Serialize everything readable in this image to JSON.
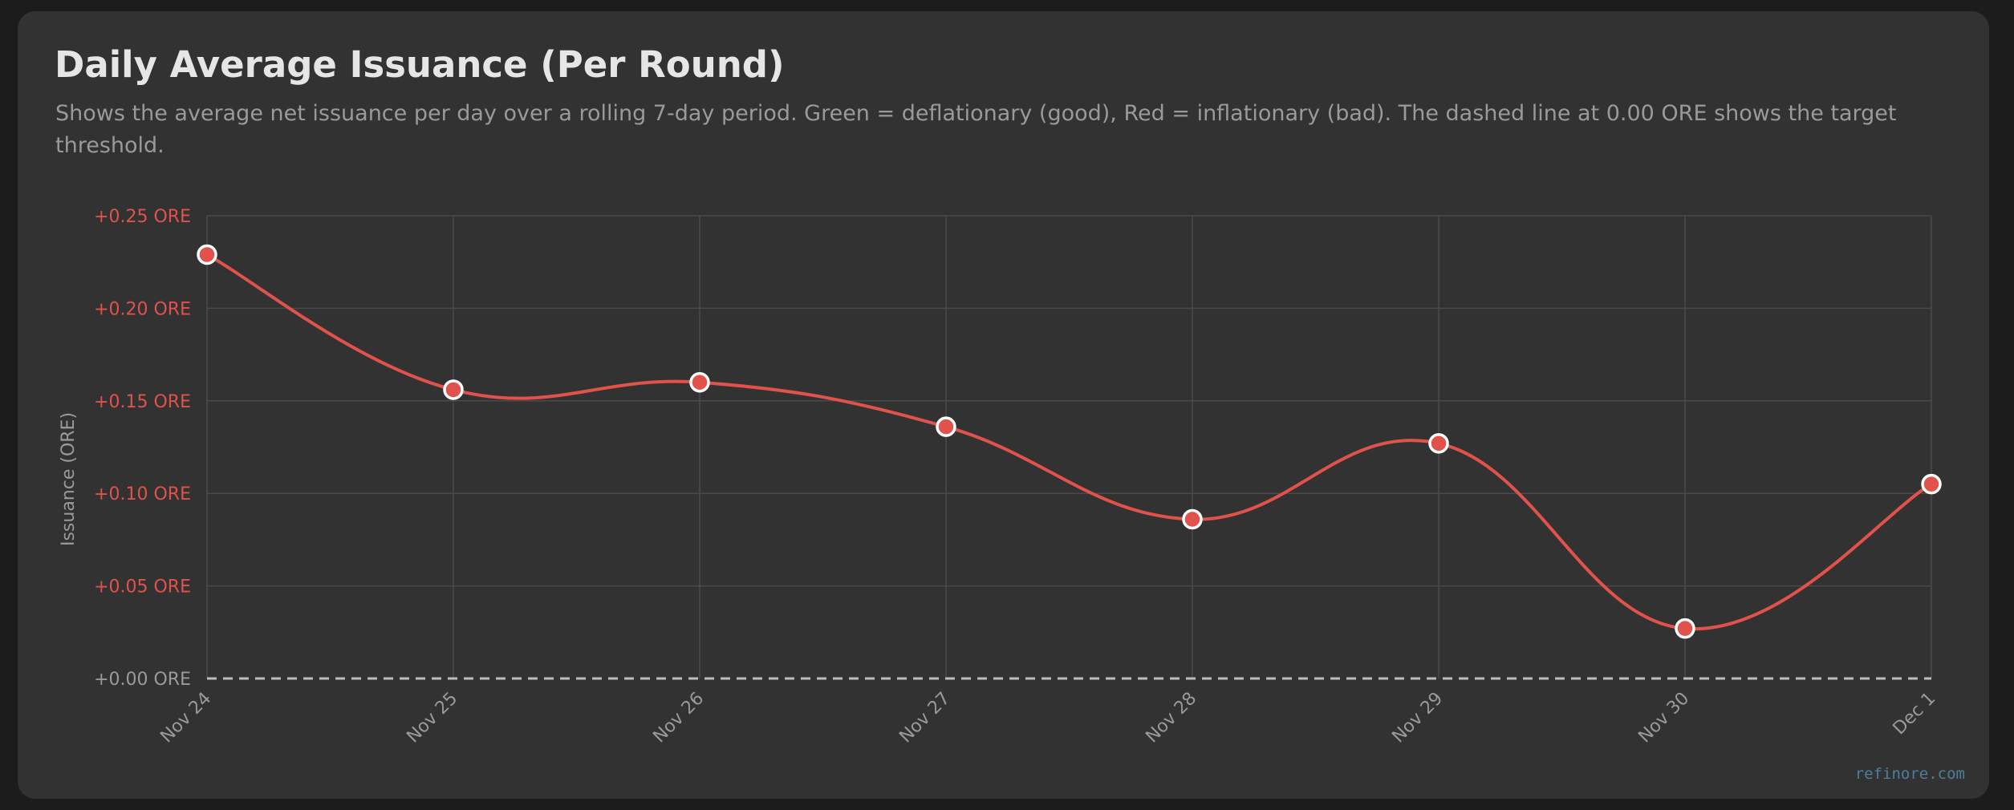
{
  "card": {
    "title": "Daily Average Issuance (Per Round)",
    "subtitle": "Shows the average net issuance per day over a rolling 7-day period. Green = deflationary (good), Red = inflationary (bad). The dashed line at 0.00 ORE shows the target threshold.",
    "watermark": "refinore.com"
  },
  "chart_data": {
    "type": "line",
    "title": "Daily Average Issuance (Per Round)",
    "xlabel": "",
    "ylabel": "Issuance (ORE)",
    "categories": [
      "Nov 24",
      "Nov 25",
      "Nov 26",
      "Nov 27",
      "Nov 28",
      "Nov 29",
      "Nov 30",
      "Dec 1"
    ],
    "series": [
      {
        "values": [
          0.229,
          0.156,
          0.16,
          0.136,
          0.086,
          0.127,
          0.027,
          0.105
        ],
        "color": "#e0524b"
      }
    ],
    "ylim": [
      0,
      0.25
    ],
    "yticks": [
      {
        "value": 0.25,
        "label": "+0.25 ORE"
      },
      {
        "value": 0.2,
        "label": "+0.20 ORE"
      },
      {
        "value": 0.15,
        "label": "+0.15 ORE"
      },
      {
        "value": 0.1,
        "label": "+0.10 ORE"
      },
      {
        "value": 0.05,
        "label": "+0.05 ORE"
      },
      {
        "value": 0.0,
        "label": "+0.00 ORE"
      }
    ],
    "threshold": {
      "value": 0.0,
      "style": "dashed"
    },
    "grid": true,
    "colors": {
      "positive": "#e0524b",
      "negative": "#3fb950",
      "grid": "#4a4a4a",
      "threshold": "#bdbdbd",
      "axis_text": "#9a9a9a",
      "point_stroke": "#ffffff"
    }
  }
}
